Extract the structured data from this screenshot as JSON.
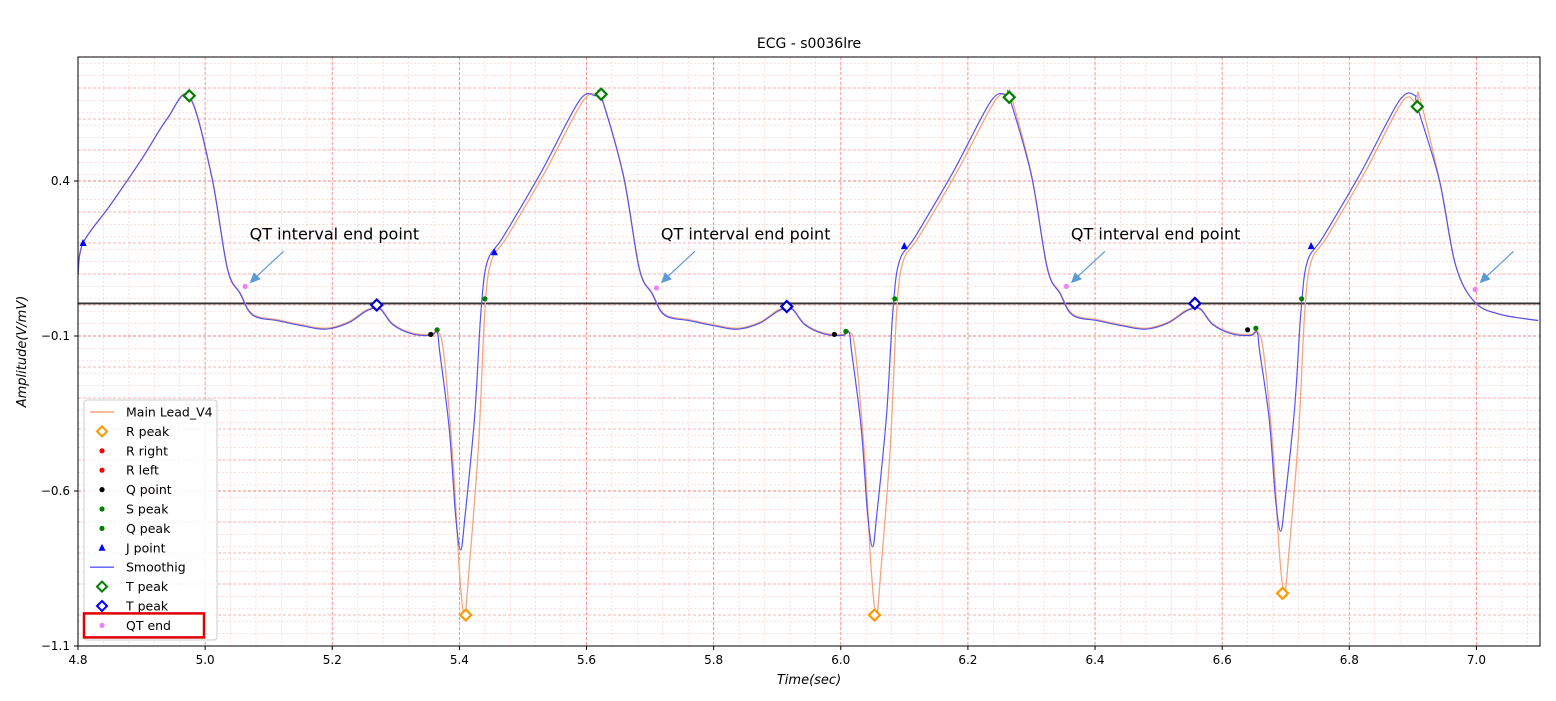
{
  "chart_data": {
    "type": "line",
    "title": "ECG - s0036lre",
    "xlabel": "Time(sec)",
    "ylabel": "Amplitude(V/mV)",
    "xlim": [
      4.8,
      7.1
    ],
    "ylim": [
      -1.1,
      0.8
    ],
    "x_ticks": [
      4.8,
      5.0,
      5.2,
      5.4,
      5.6,
      5.8,
      6.0,
      6.2,
      6.4,
      6.6,
      6.8,
      7.0
    ],
    "x_tick_labels": [
      "4.8",
      "5.0",
      "5.2",
      "5.4",
      "5.6",
      "5.8",
      "6.0",
      "6.2",
      "6.4",
      "6.6",
      "6.8",
      "7.0"
    ],
    "y_ticks": [
      0.4,
      -0.1,
      -0.6,
      -1.1
    ],
    "y_tick_labels": [
      "0.4",
      "−0.1",
      "−0.6",
      "−1.1"
    ],
    "grid": true,
    "legend_position": "lower-left",
    "baseline_y": 0.005,
    "period": 0.645,
    "beats": [
      {
        "t_peak": [
          4.975,
          0.675
        ],
        "qt_end": [
          5.063,
          0.06
        ],
        "j_start": [
          4.808,
          0.2
        ],
        "t_peak2": [
          5.27,
          0.0
        ],
        "q_point": [
          5.355,
          -0.095
        ],
        "q_peak": [
          5.365,
          -0.08
        ],
        "r_peak": [
          5.41,
          -1.0
        ],
        "r_min_smooth": 0.79,
        "s_peak": [
          5.44,
          0.02
        ],
        "j_point": [
          5.455,
          0.17
        ]
      },
      {
        "t_peak": [
          5.623,
          0.68
        ],
        "qt_end": [
          5.71,
          0.055
        ],
        "t_peak2": [
          5.915,
          -0.005
        ],
        "q_point": [
          5.99,
          -0.095
        ],
        "q_peak": [
          6.008,
          -0.085
        ],
        "r_peak": [
          6.053,
          -1.0
        ],
        "r_min_smooth": 0.78,
        "s_peak": [
          6.085,
          0.02
        ],
        "j_point": [
          6.1,
          0.19
        ]
      },
      {
        "t_peak": [
          6.265,
          0.67
        ],
        "qt_end": [
          6.355,
          0.06
        ],
        "t_peak2": [
          6.557,
          0.005
        ],
        "q_point": [
          6.64,
          -0.08
        ],
        "q_peak": [
          6.653,
          -0.075
        ],
        "r_peak": [
          6.695,
          -0.93
        ],
        "r_min_smooth": 0.73,
        "s_peak": [
          6.725,
          0.02
        ],
        "j_point": [
          6.74,
          0.19
        ]
      },
      {
        "t_peak": [
          6.907,
          0.64
        ],
        "qt_end": [
          6.998,
          0.05
        ]
      }
    ],
    "series": [
      {
        "name": "Main Lead_V4",
        "color": "#f4a582"
      },
      {
        "name": "R peak",
        "color": "#ff9900"
      },
      {
        "name": "R right",
        "color": "#ff0000"
      },
      {
        "name": "R left",
        "color": "#ff0000"
      },
      {
        "name": "Q point",
        "color": "#000000"
      },
      {
        "name": "S peak",
        "color": "#008000"
      },
      {
        "name": "Q peak",
        "color": "#008000"
      },
      {
        "name": "J point",
        "color": "#0000ff"
      },
      {
        "name": "Smoothig",
        "color": "#5555ff"
      },
      {
        "name": "T peak",
        "color": "#008000"
      },
      {
        "name": "T peak",
        "color": "#0000ff"
      },
      {
        "name": "QT end",
        "color": "#ee82ee"
      }
    ],
    "annotations": [
      {
        "text": "QT interval end point",
        "anchor_time": 5.07
      },
      {
        "text": "QT interval end point",
        "anchor_time": 5.717
      },
      {
        "text": "QT interval end point",
        "anchor_time": 6.362
      },
      {
        "text": "",
        "anchor_time": 7.005
      }
    ],
    "highlight_legend_item": "QT end"
  }
}
